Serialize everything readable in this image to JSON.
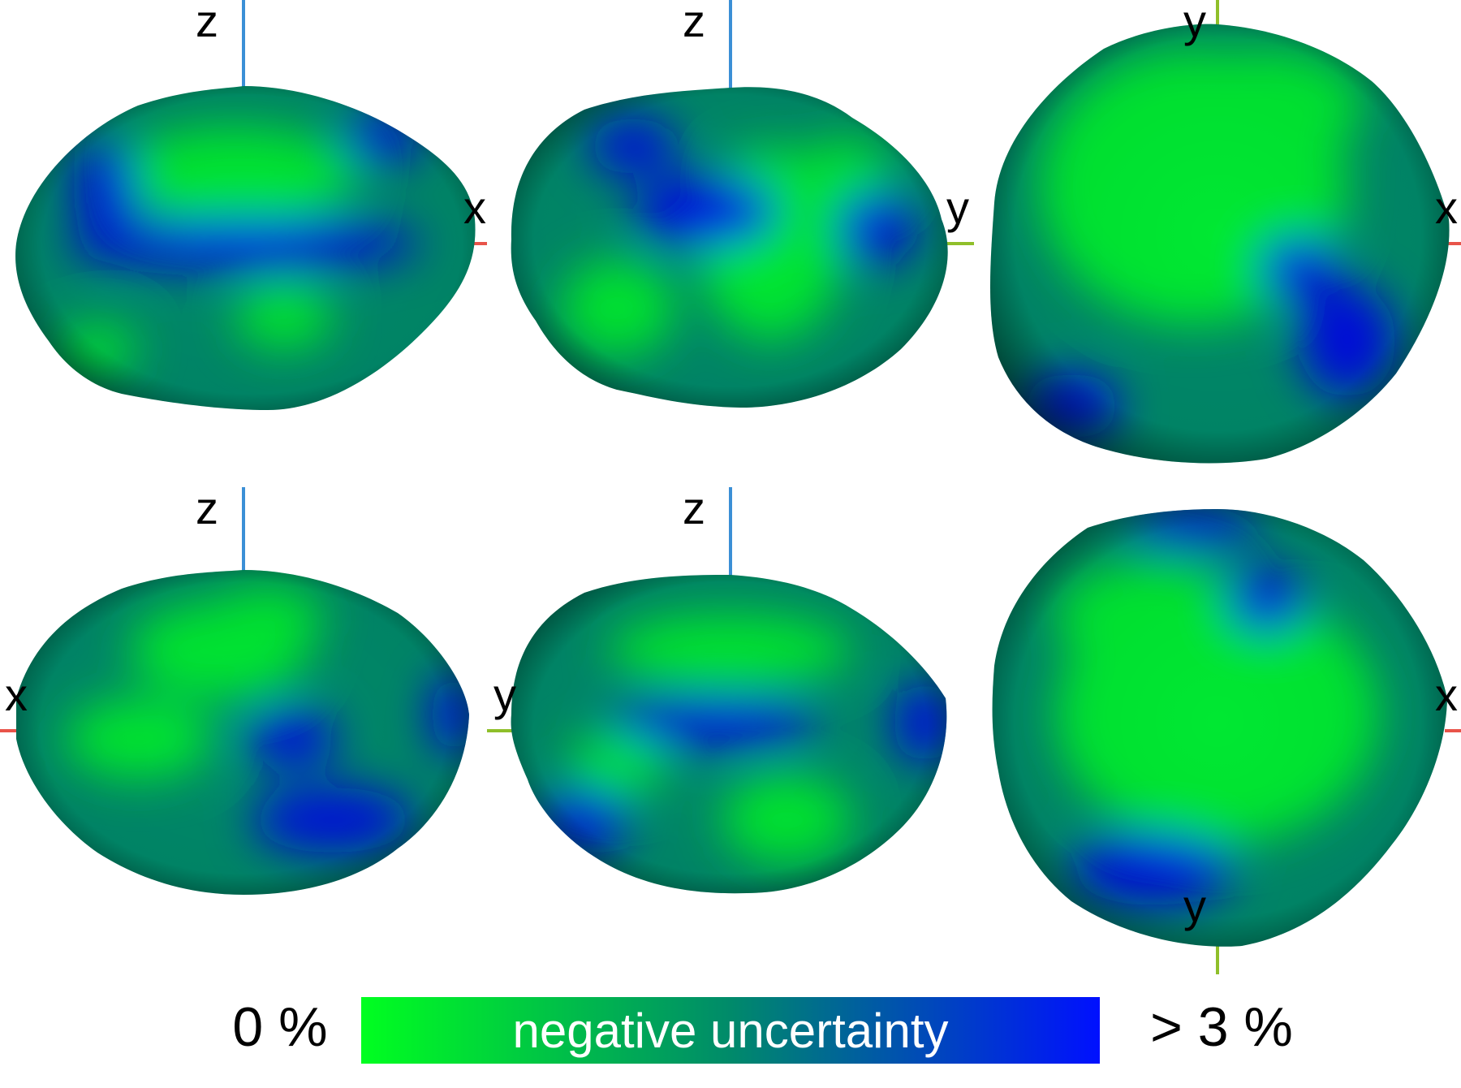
{
  "axis_colors": {
    "x": "#e8544a",
    "y": "#8fbf2a",
    "z": "#3b8fd6"
  },
  "surface_colors": {
    "low": "#00e832",
    "mid": "#008a6a",
    "high": "#0010e0",
    "rim": "#001208"
  },
  "views": [
    {
      "labels": [
        "z",
        "x"
      ]
    },
    {
      "labels": [
        "z",
        "y"
      ]
    },
    {
      "labels": [
        "y",
        "x"
      ]
    },
    {
      "labels": [
        "z",
        "x"
      ]
    },
    {
      "labels": [
        "z",
        "y"
      ]
    },
    {
      "labels": [
        "x",
        "y"
      ]
    }
  ],
  "legend": {
    "min_label": "0 %",
    "max_label": "> 3 %",
    "title": "negative uncertainty",
    "gradient": [
      "#00ff20",
      "#008a6a",
      "#0010ff"
    ]
  }
}
